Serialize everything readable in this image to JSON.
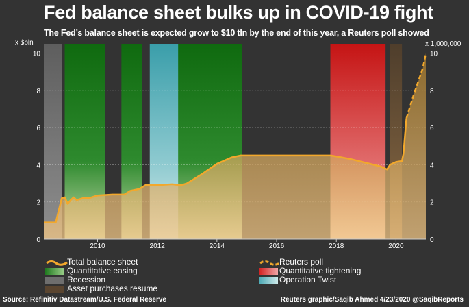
{
  "title": "Fed balance sheet bulks up in COVID-19 fight",
  "subtitle": "The Fed’s balance sheet is expected grow to $10 tln by the end of this year, a Reuters poll showed",
  "source": "Source: Refinitiv Datastream/U.S. Federal Reserve",
  "credit": "Reuters graphic/Saqib Ahmed 4/23/2020 @SaqibReports",
  "colors": {
    "background": "#333333",
    "area": "#7a5a22",
    "line": "#f2a82c",
    "poll": "#f2a82c",
    "recession": "#6e6e6e",
    "qe": "#1f7a1f",
    "qt": "#d11f1f",
    "twist": "#4aa8b4",
    "resume": "#5a4530"
  },
  "chart_data": {
    "type": "area",
    "left_axis_unit": "x $bln",
    "right_axis_unit": "x 1,000,000",
    "x_ticks": [
      "2010",
      "2012",
      "2014",
      "2016",
      "2018",
      "2020"
    ],
    "x_tick_values": [
      2010,
      2012,
      2014,
      2016,
      2018,
      2020
    ],
    "xlim": [
      2008.2,
      2021.0
    ],
    "ylim": [
      0,
      10.5
    ],
    "left_y_ticks": [
      "0",
      "2",
      "4",
      "6",
      "8",
      "10"
    ],
    "right_y_ticks": [
      "0",
      "2",
      "4",
      "6",
      "8",
      "10"
    ],
    "y_tick_values": [
      0,
      2,
      4,
      6,
      8,
      10
    ],
    "series": [
      {
        "name": "Total balance sheet",
        "style": "solid",
        "x": [
          2008.2,
          2008.6,
          2008.8,
          2008.9,
          2009.0,
          2009.1,
          2009.2,
          2009.3,
          2009.5,
          2009.7,
          2010.0,
          2010.5,
          2010.9,
          2011.1,
          2011.4,
          2011.6,
          2012.0,
          2012.5,
          2012.8,
          2013.0,
          2013.5,
          2014.0,
          2014.5,
          2014.8,
          2015.0,
          2016.0,
          2017.0,
          2017.8,
          2018.0,
          2018.5,
          2019.0,
          2019.5,
          2019.7,
          2019.8,
          2020.0,
          2020.2,
          2020.25,
          2020.35
        ],
        "values": [
          0.9,
          0.9,
          2.2,
          2.25,
          1.9,
          2.1,
          2.25,
          2.1,
          2.2,
          2.2,
          2.35,
          2.4,
          2.4,
          2.6,
          2.7,
          2.9,
          2.9,
          2.95,
          2.9,
          3.0,
          3.5,
          4.05,
          4.4,
          4.5,
          4.5,
          4.5,
          4.5,
          4.5,
          4.45,
          4.3,
          4.1,
          3.9,
          3.75,
          4.0,
          4.15,
          4.2,
          4.6,
          6.5
        ]
      },
      {
        "name": "Reuters poll",
        "style": "dashed",
        "x": [
          2020.35,
          2020.6,
          2020.9,
          2021.0
        ],
        "values": [
          6.5,
          7.8,
          9.2,
          10.0
        ]
      }
    ],
    "shaded_periods": [
      {
        "name": "Recession",
        "start": 2008.2,
        "end": 2008.8
      },
      {
        "name": "Quantitative easing",
        "start": 2008.9,
        "end": 2010.25
      },
      {
        "name": "Quantitative easing",
        "start": 2010.8,
        "end": 2011.5
      },
      {
        "name": "Operation Twist",
        "start": 2011.75,
        "end": 2012.95
      },
      {
        "name": "Quantitative easing",
        "start": 2012.7,
        "end": 2014.85
      },
      {
        "name": "Quantitative tightening",
        "start": 2017.8,
        "end": 2019.65
      },
      {
        "name": "Asset purchases resume",
        "start": 2019.8,
        "end": 2020.2
      }
    ],
    "legend": [
      {
        "label": "Total balance sheet",
        "kind": "line"
      },
      {
        "label": "Reuters poll",
        "kind": "dashed"
      },
      {
        "label": "Quantitative easing",
        "kind": "qe"
      },
      {
        "label": "Quantitative tightening",
        "kind": "qt"
      },
      {
        "label": "Recession",
        "kind": "recession"
      },
      {
        "label": "Operation Twist",
        "kind": "twist"
      },
      {
        "label": "Asset purchases resume",
        "kind": "resume"
      }
    ]
  }
}
